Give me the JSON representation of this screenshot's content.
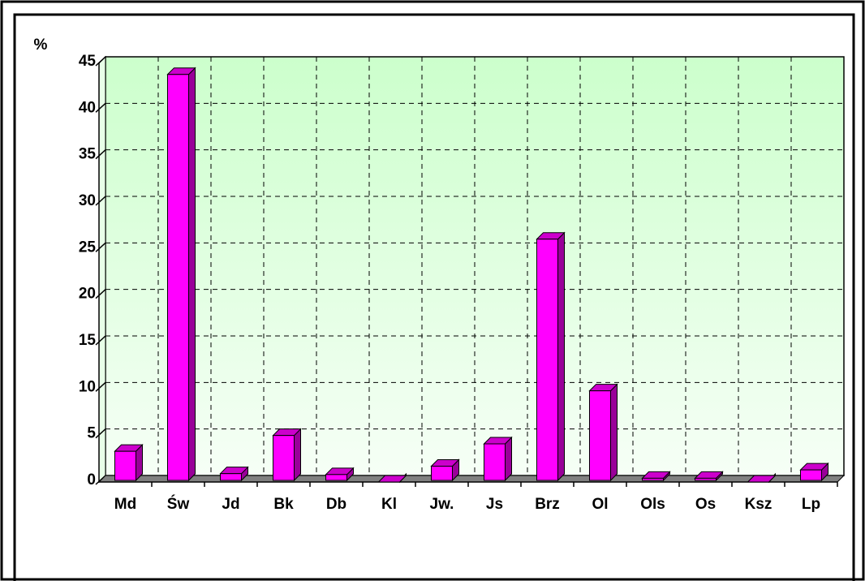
{
  "chart_data": {
    "type": "bar",
    "y_label": "%",
    "categories": [
      "Md",
      "Św",
      "Jd",
      "Bk",
      "Db",
      "Kl",
      "Jw.",
      "Js",
      "Brz",
      "Ol",
      "Ols",
      "Os",
      "Ksz",
      "Lp"
    ],
    "values": [
      3.3,
      43.8,
      0.9,
      5.0,
      0.8,
      0,
      1.7,
      4.1,
      26.1,
      9.8,
      0.4,
      0.4,
      0,
      1.3
    ],
    "color": "#ff00ff",
    "ylim": [
      0,
      45
    ],
    "yticks": [
      0,
      5,
      10,
      15,
      20,
      25,
      30,
      35,
      40,
      45
    ],
    "grid": true
  }
}
